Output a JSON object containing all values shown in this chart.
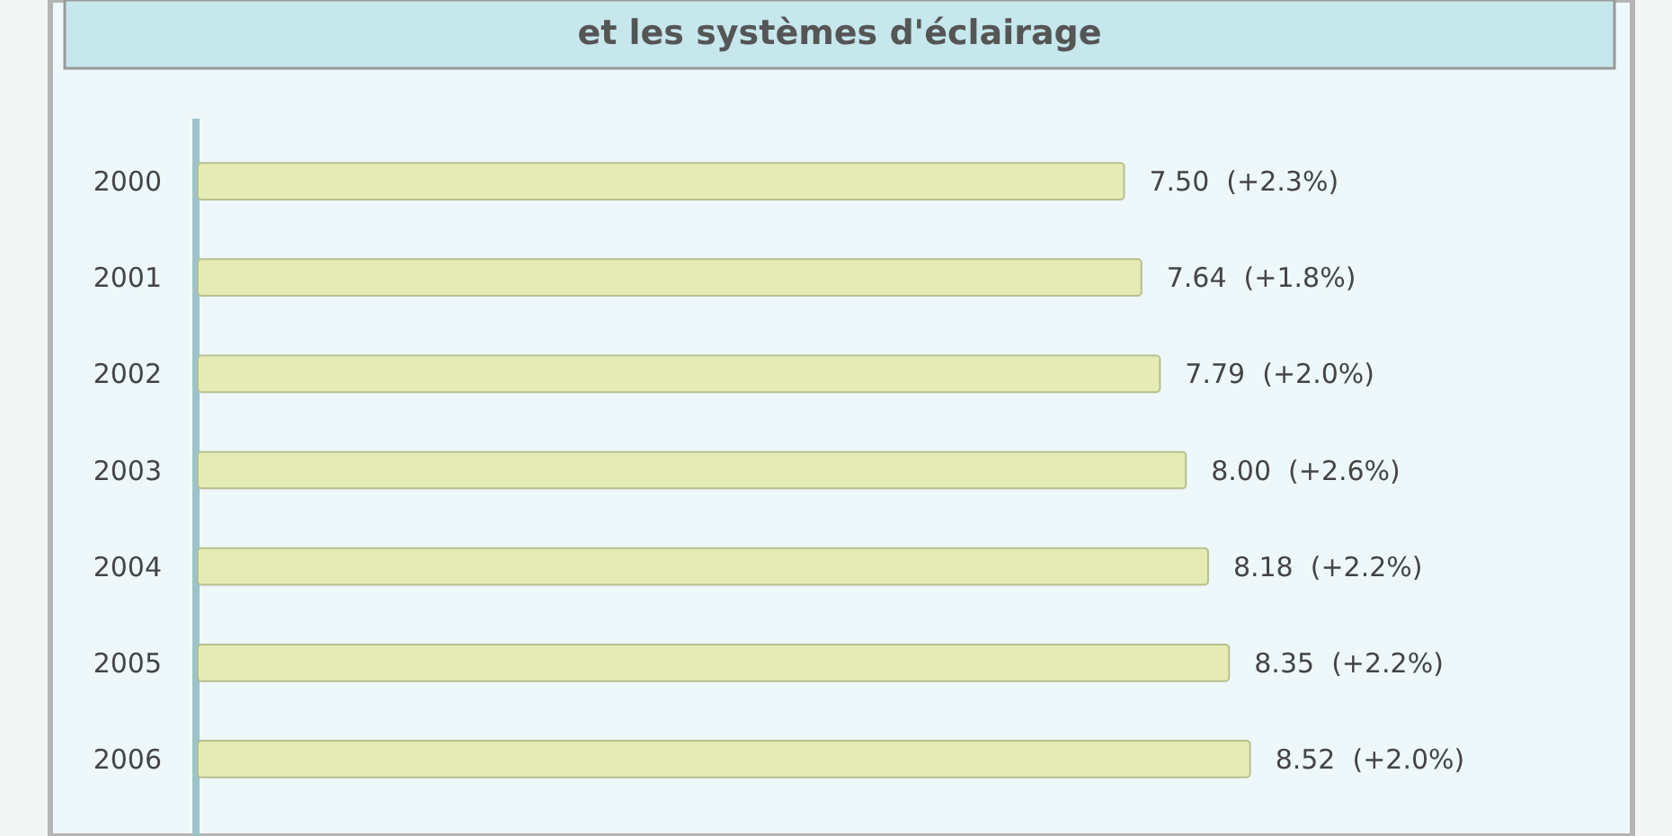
{
  "chart_data": {
    "type": "bar",
    "orientation": "horizontal",
    "title": "et les systèmes d'éclairage",
    "categories": [
      "2000",
      "2001",
      "2002",
      "2003",
      "2004",
      "2005",
      "2006"
    ],
    "values": [
      7.5,
      7.64,
      7.79,
      8.0,
      8.18,
      8.35,
      8.52
    ],
    "value_labels": [
      "7.50  (+2.3%)",
      "7.64  (+1.8%)",
      "7.79  (+2.0%)",
      "8.00  (+2.6%)",
      "8.18  (+2.2%)",
      "8.35  (+2.2%)",
      "8.52  (+2.0%)"
    ],
    "color": "#e4ebb4"
  }
}
